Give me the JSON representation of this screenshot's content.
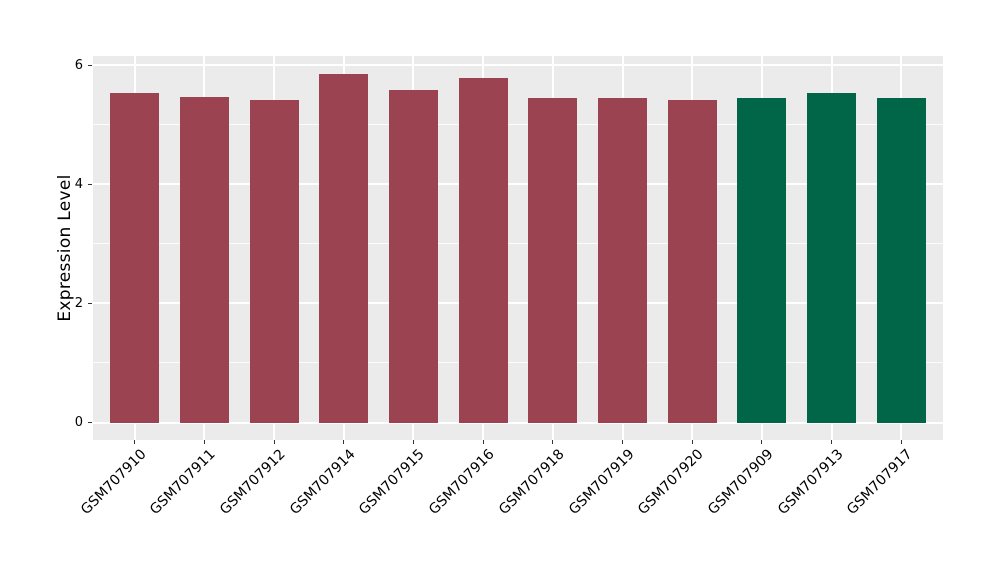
{
  "colors": {
    "bar_group_main": "#9C4351",
    "bar_group_highlight": "#006647",
    "panel_background": "#EBEBEB",
    "grid_line": "#FFFFFF",
    "tick_mark": "#333333",
    "axis_text": "#000000",
    "figure_background": "#FFFFFF"
  },
  "chart_data": {
    "type": "bar",
    "title": "",
    "xlabel": "",
    "ylabel": "Expression Level",
    "categories": [
      "GSM707910",
      "GSM707911",
      "GSM707912",
      "GSM707914",
      "GSM707915",
      "GSM707916",
      "GSM707918",
      "GSM707919",
      "GSM707920",
      "GSM707909",
      "GSM707913",
      "GSM707917"
    ],
    "values": [
      5.54,
      5.46,
      5.41,
      5.85,
      5.59,
      5.79,
      5.45,
      5.44,
      5.41,
      5.44,
      5.54,
      5.45
    ],
    "bar_groups": [
      "main",
      "main",
      "main",
      "main",
      "main",
      "main",
      "main",
      "main",
      "main",
      "highlight",
      "highlight",
      "highlight"
    ],
    "group_colors": {
      "main": "#9C4351",
      "highlight": "#006647"
    },
    "yticks": [
      0,
      2,
      4,
      6
    ],
    "yticks_minor": [
      1,
      3,
      5
    ],
    "ylim": [
      -0.293,
      6.153
    ],
    "bar_width_frac": 0.7,
    "band_expand": 0.6,
    "grid": true,
    "legend_position": "none",
    "x_label_angle_deg": 45
  }
}
